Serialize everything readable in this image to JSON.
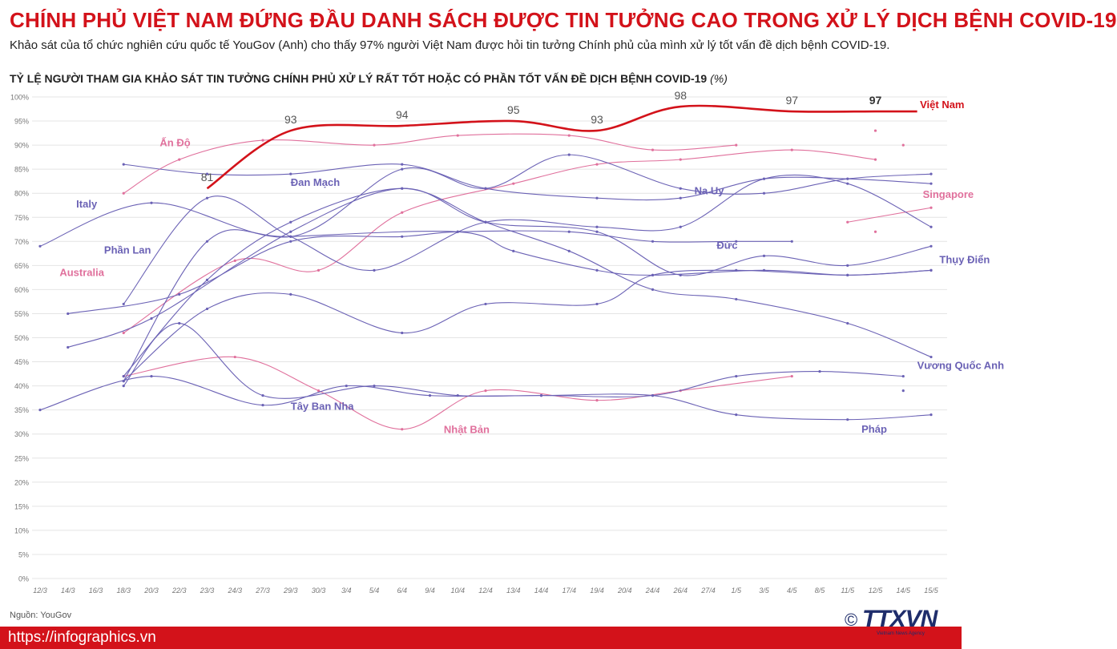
{
  "header": {
    "title": "CHÍNH PHỦ VIỆT NAM ĐỨNG ĐẦU DANH SÁCH ĐƯỢC TIN TƯỞNG CAO TRONG XỬ LÝ DỊCH BỆNH COVID-19",
    "subtitle": "Khảo sát của tổ chức nghiên cứu quốc tế YouGov (Anh) cho thấy 97% người Việt Nam được hỏi tin tưởng Chính phủ của mình xử lý tốt vấn đề dịch bệnh COVID-19.",
    "chart_heading": "TỶ LỆ NGƯỜI THAM GIA KHẢO SÁT TIN TƯỞNG CHÍNH PHỦ XỬ LÝ RẤT TỐT HOẶC CÓ PHẦN TỐT VẤN ĐỀ DỊCH BỆNH COVID-19",
    "chart_unit": "(%)"
  },
  "footer": {
    "source": "Nguồn: YouGov",
    "url": "https://infographics.vn",
    "logo_text": "TTXVN",
    "logo_symbol": "©",
    "logo_sub": "Vietnam News Agency"
  },
  "colors": {
    "vietnam": "#d3121a",
    "purple": "#6b62b5",
    "pink": "#e0709c",
    "grid": "#e4e4e4",
    "axis_text": "#777777"
  },
  "chart_data": {
    "type": "line",
    "x": [
      "12/3",
      "14/3",
      "16/3",
      "18/3",
      "20/3",
      "22/3",
      "23/3",
      "24/3",
      "27/3",
      "29/3",
      "30/3",
      "3/4",
      "5/4",
      "6/4",
      "9/4",
      "10/4",
      "12/4",
      "13/4",
      "14/4",
      "17/4",
      "19/4",
      "20/4",
      "24/4",
      "26/4",
      "27/4",
      "1/5",
      "3/5",
      "4/5",
      "8/5",
      "11/5",
      "12/5",
      "14/5",
      "15/5"
    ],
    "ylim": [
      0,
      100
    ],
    "yticks": [
      "0%",
      "5%",
      "10%",
      "15%",
      "20%",
      "25%",
      "30%",
      "35%",
      "40%",
      "45%",
      "50%",
      "55%",
      "60%",
      "65%",
      "70%",
      "75%",
      "80%",
      "85%",
      "90%",
      "95%",
      "100%"
    ],
    "grid": true,
    "series": [
      {
        "name": "Việt Nam",
        "color": "vietnam",
        "labels": true,
        "points": [
          [
            6,
            81
          ],
          [
            9,
            93
          ],
          [
            13,
            94
          ],
          [
            17,
            95
          ],
          [
            20,
            93
          ],
          [
            23,
            98
          ],
          [
            27,
            97
          ],
          [
            30,
            97
          ],
          [
            31.5,
            97
          ]
        ]
      },
      {
        "name": "Ấn Độ",
        "color": "pink",
        "points": [
          [
            3,
            80
          ],
          [
            5,
            87
          ],
          [
            8,
            91
          ],
          [
            12,
            90
          ],
          [
            15,
            92
          ],
          [
            19,
            92
          ],
          [
            22,
            89
          ],
          [
            25,
            90
          ]
        ]
      },
      {
        "name": "Singapore",
        "color": "pink",
        "points": [
          [
            29,
            74
          ],
          [
            32,
            77
          ]
        ]
      },
      {
        "name": "",
        "color": "pink",
        "points": [
          [
            3,
            42
          ],
          [
            7,
            46
          ],
          [
            10,
            39
          ],
          [
            13,
            31
          ],
          [
            16,
            39
          ],
          [
            20,
            37
          ],
          [
            23,
            39
          ],
          [
            27,
            42
          ]
        ]
      },
      {
        "name": "",
        "color": "pink",
        "points": [
          [
            3,
            51
          ],
          [
            7,
            66
          ],
          [
            10,
            64
          ],
          [
            13,
            76
          ],
          [
            17,
            82
          ],
          [
            20,
            86
          ],
          [
            23,
            87
          ],
          [
            27,
            89
          ],
          [
            30,
            87
          ]
        ]
      },
      {
        "name": "",
        "color": "purple",
        "points": [
          [
            3,
            86
          ],
          [
            6,
            84
          ],
          [
            9,
            84
          ],
          [
            13,
            86
          ],
          [
            16,
            81
          ],
          [
            20,
            79
          ],
          [
            23,
            79
          ],
          [
            26,
            83
          ],
          [
            29,
            83
          ],
          [
            32,
            82
          ]
        ]
      },
      {
        "name": "",
        "color": "purple",
        "points": [
          [
            0,
            69
          ],
          [
            4,
            78
          ],
          [
            9,
            71
          ],
          [
            13,
            85
          ],
          [
            16,
            81
          ],
          [
            19,
            88
          ],
          [
            23,
            81
          ],
          [
            26,
            80
          ],
          [
            29,
            83
          ],
          [
            32,
            84
          ]
        ]
      },
      {
        "name": "",
        "color": "purple",
        "points": [
          [
            3,
            57
          ],
          [
            6,
            79
          ],
          [
            9,
            71
          ],
          [
            12,
            64
          ],
          [
            16,
            74
          ],
          [
            20,
            73
          ],
          [
            23,
            73
          ],
          [
            26,
            83
          ],
          [
            29,
            82
          ],
          [
            32,
            73
          ]
        ]
      },
      {
        "name": "",
        "color": "purple",
        "points": [
          [
            1,
            55
          ],
          [
            5,
            59
          ],
          [
            9,
            70
          ],
          [
            13,
            71
          ],
          [
            15,
            72
          ],
          [
            19,
            72
          ],
          [
            22,
            70
          ],
          [
            25,
            70
          ],
          [
            27,
            70
          ]
        ]
      },
      {
        "name": "",
        "color": "purple",
        "points": [
          [
            1,
            48
          ],
          [
            4,
            54
          ],
          [
            9,
            72
          ],
          [
            13,
            81
          ],
          [
            16,
            74
          ],
          [
            20,
            72
          ],
          [
            23,
            63
          ],
          [
            26,
            67
          ],
          [
            29,
            65
          ],
          [
            32,
            69
          ]
        ]
      },
      {
        "name": "",
        "color": "purple",
        "points": [
          [
            3,
            41
          ],
          [
            6,
            70
          ],
          [
            9,
            71
          ],
          [
            15,
            72
          ],
          [
            17,
            68
          ],
          [
            20,
            64
          ],
          [
            22,
            63
          ],
          [
            26,
            64
          ],
          [
            29,
            63
          ],
          [
            32,
            64
          ]
        ]
      },
      {
        "name": "",
        "color": "purple",
        "points": [
          [
            3,
            42
          ],
          [
            6,
            62
          ],
          [
            9,
            74
          ],
          [
            13,
            81
          ],
          [
            16,
            74
          ],
          [
            19,
            68
          ],
          [
            22,
            60
          ],
          [
            25,
            58
          ],
          [
            29,
            53
          ],
          [
            32,
            46
          ]
        ]
      },
      {
        "name": "",
        "color": "purple",
        "points": [
          [
            0,
            35
          ],
          [
            4,
            42
          ],
          [
            8,
            36
          ],
          [
            11,
            40
          ],
          [
            14,
            38
          ],
          [
            18,
            38
          ],
          [
            22,
            38
          ],
          [
            25,
            42
          ],
          [
            28,
            43
          ],
          [
            31,
            42
          ]
        ]
      },
      {
        "name": "",
        "color": "purple",
        "points": [
          [
            3,
            41
          ],
          [
            6,
            56
          ],
          [
            9,
            59
          ],
          [
            13,
            51
          ],
          [
            16,
            57
          ],
          [
            20,
            57
          ],
          [
            22,
            63
          ],
          [
            25,
            64
          ],
          [
            29,
            63
          ],
          [
            32,
            64
          ]
        ]
      },
      {
        "name": "",
        "color": "purple",
        "points": [
          [
            3,
            40
          ],
          [
            5,
            53
          ],
          [
            8,
            38
          ],
          [
            12,
            40
          ],
          [
            15,
            38
          ],
          [
            18,
            38
          ],
          [
            22,
            38
          ],
          [
            25,
            34
          ],
          [
            29,
            33
          ],
          [
            32,
            34
          ]
        ]
      }
    ],
    "stray_points": [
      {
        "color": "pink",
        "x": 30,
        "y": 93
      },
      {
        "color": "pink",
        "x": 31,
        "y": 90
      },
      {
        "color": "pink",
        "x": 30,
        "y": 72
      },
      {
        "color": "purple",
        "x": 31,
        "y": 39
      }
    ],
    "annotations": [
      {
        "text": "Việt Nam",
        "color": "vietnam",
        "x": 31.6,
        "y": 97.7,
        "bold": true
      },
      {
        "text": "Ấn Độ",
        "color": "pink",
        "x": 4.3,
        "y": 89.8
      },
      {
        "text": "Singapore",
        "color": "pink",
        "x": 31.7,
        "y": 79
      },
      {
        "text": "Australia",
        "color": "pink",
        "x": 0.7,
        "y": 62.8
      },
      {
        "text": "Nhật Bản",
        "color": "pink",
        "x": 14.5,
        "y": 30.2
      },
      {
        "text": "Italy",
        "color": "purple",
        "x": 1.3,
        "y": 77
      },
      {
        "text": "Phần Lan",
        "color": "purple",
        "x": 2.3,
        "y": 67.5
      },
      {
        "text": "Đan Mạch",
        "color": "purple",
        "x": 9,
        "y": 81.5
      },
      {
        "text": "Na Uy",
        "color": "purple",
        "x": 23.5,
        "y": 79.8
      },
      {
        "text": "Đức",
        "color": "purple",
        "x": 24.3,
        "y": 68.5
      },
      {
        "text": "Thụy Điển",
        "color": "purple",
        "x": 32.3,
        "y": 65.5
      },
      {
        "text": "Vương Quốc Anh",
        "color": "purple",
        "x": 31.5,
        "y": 43.5
      },
      {
        "text": "Tây Ban Nha",
        "color": "purple",
        "x": 9,
        "y": 35
      },
      {
        "text": "Pháp",
        "color": "purple",
        "x": 29.5,
        "y": 30.3
      }
    ]
  }
}
